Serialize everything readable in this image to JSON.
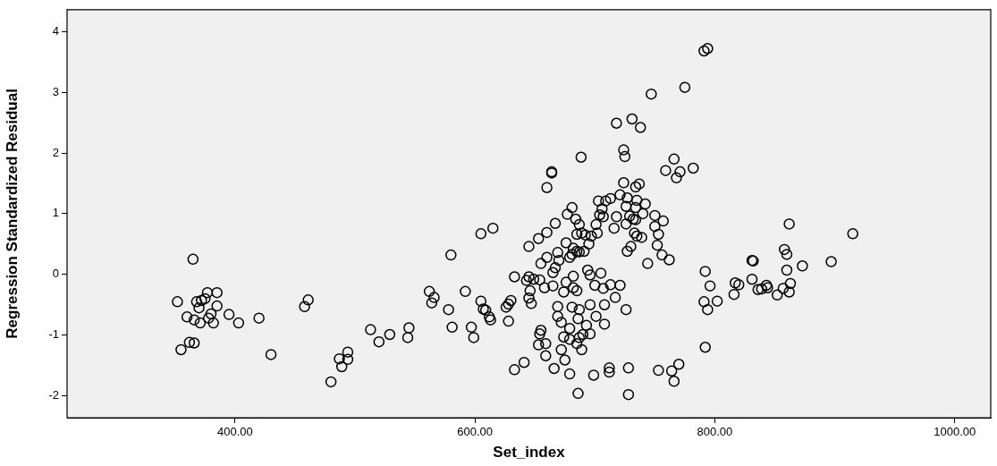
{
  "chart_data": {
    "type": "scatter",
    "xlabel": "Set_index",
    "ylabel": "Regression Standardized Residual",
    "xlim": [
      260,
      1030
    ],
    "ylim": [
      -2.36,
      4.36
    ],
    "xticks": [
      {
        "value": 400,
        "label": "400.00"
      },
      {
        "value": 600,
        "label": "600.00"
      },
      {
        "value": 800,
        "label": "800.00"
      },
      {
        "value": 1000,
        "label": "1000.00"
      }
    ],
    "yticks": [
      -2,
      -1,
      0,
      1,
      2,
      3,
      4
    ],
    "grid": false,
    "legend": false,
    "marker": "circle",
    "series": [
      {
        "color": "#000000",
        "x": [
          352,
          355,
          360,
          362,
          365,
          366,
          366,
          368,
          370,
          371,
          372,
          375,
          377,
          378,
          380,
          382,
          385,
          385,
          395,
          403,
          420,
          430,
          461,
          458,
          480,
          487,
          494,
          494,
          489,
          513,
          529,
          520,
          545,
          544,
          562,
          566,
          564,
          578,
          581,
          592,
          580,
          605,
          615,
          597,
          599,
          605,
          607,
          609,
          612,
          613,
          628,
          626,
          628,
          630,
          633,
          633,
          641,
          645,
          645,
          646,
          645,
          647,
          649,
          643,
          688.5,
          724,
          725,
          766,
          759,
          771,
          768,
          782,
          664,
          664,
          660,
          724,
          734,
          737,
          681,
          677,
          684,
          687,
          667,
          660,
          653,
          676,
          685,
          689,
          692,
          697,
          702,
          695,
          682,
          685,
          681,
          687,
          691,
          679,
          669,
          660,
          670,
          655,
          667,
          665,
          701,
          703,
          706,
          704,
          707,
          709,
          713,
          721,
          727,
          735,
          742,
          726,
          734,
          718,
          729,
          732,
          726,
          734,
          740,
          750,
          757,
          750,
          753,
          716,
          733,
          735,
          739,
          730,
          727,
          752,
          756,
          762,
          744,
          694,
          696,
          705,
          700,
          707,
          713,
          721,
          717,
          726,
          682,
          676,
          674,
          682,
          685,
          665,
          658,
          654,
          669,
          681,
          687,
          696,
          701,
          708,
          708,
          669,
          672,
          686,
          679,
          693,
          690,
          687,
          696,
          674,
          679,
          685,
          689,
          672,
          675,
          655,
          654,
          653,
          659,
          659,
          666,
          679,
          686,
          699,
          712,
          712,
          728,
          728,
          753,
          764,
          770,
          766,
          792,
          792,
          796,
          791,
          794,
          802,
          794,
          791,
          775,
          747,
          718,
          731,
          738,
          862,
          915,
          858,
          860,
          860,
          873,
          897,
          831,
          832,
          831,
          816,
          817,
          820,
          836,
          839,
          843,
          844,
          852,
          857,
          863,
          862
        ],
        "values": [
          -0.45,
          -1.24,
          -0.7,
          -1.12,
          0.25,
          -1.13,
          -0.75,
          -0.45,
          -0.55,
          -0.8,
          -0.43,
          -0.4,
          -0.3,
          -0.72,
          -0.65,
          -0.8,
          -0.3,
          -0.52,
          -0.66,
          -0.8,
          -0.72,
          -1.32,
          -0.42,
          -0.53,
          -1.77,
          -1.39,
          -1.28,
          -1.4,
          -1.52,
          -0.91,
          -0.99,
          -1.11,
          -0.88,
          -1.04,
          -0.28,
          -0.38,
          -0.47,
          -0.58,
          -0.87,
          -0.28,
          0.32,
          0.67,
          0.76,
          -0.87,
          -1.04,
          -0.44,
          -0.57,
          -0.59,
          -0.7,
          -0.75,
          -0.77,
          -0.54,
          -0.49,
          -0.43,
          -0.04,
          -1.57,
          -1.45,
          0.46,
          -0.04,
          -0.27,
          -0.39,
          -0.48,
          -0.08,
          -0.1,
          1.93,
          2.05,
          1.94,
          1.9,
          1.71,
          1.69,
          1.59,
          1.75,
          1.69,
          1.67,
          1.43,
          1.51,
          1.44,
          1.49,
          1.1,
          0.99,
          0.91,
          0.82,
          0.84,
          0.69,
          0.59,
          0.52,
          0.66,
          0.68,
          0.65,
          0.63,
          0.68,
          0.5,
          0.43,
          0.38,
          0.33,
          0.37,
          0.38,
          0.28,
          0.36,
          0.28,
          0.23,
          0.18,
          0.11,
          0.03,
          0.82,
          1.21,
          1.08,
          0.98,
          0.95,
          1.21,
          1.25,
          1.31,
          1.26,
          1.22,
          1.16,
          1.12,
          1.1,
          0.95,
          0.96,
          0.91,
          0.83,
          0.9,
          1.0,
          0.97,
          0.88,
          0.79,
          0.66,
          0.76,
          0.68,
          0.63,
          0.61,
          0.46,
          0.38,
          0.48,
          0.32,
          0.24,
          0.18,
          0.07,
          -0.01,
          0.02,
          -0.18,
          -0.23,
          -0.17,
          -0.18,
          -0.38,
          -0.58,
          -0.03,
          -0.13,
          -0.29,
          -0.22,
          -0.27,
          -0.19,
          -0.22,
          -0.09,
          -0.53,
          -0.54,
          -0.58,
          -0.5,
          -0.69,
          -0.82,
          -0.5,
          -0.69,
          -0.79,
          -0.73,
          -0.89,
          -0.84,
          -0.99,
          -1.04,
          -0.98,
          -1.03,
          -1.07,
          -1.14,
          -1.24,
          -1.24,
          -1.41,
          -0.92,
          -0.98,
          -1.16,
          -1.14,
          -1.34,
          -1.55,
          -1.64,
          -1.96,
          -1.66,
          -1.54,
          -1.61,
          -1.54,
          -1.98,
          -1.58,
          -1.59,
          -1.48,
          -1.76,
          -1.2,
          0.05,
          -0.19,
          -0.45,
          -0.58,
          -0.44,
          3.72,
          3.68,
          3.08,
          2.97,
          2.49,
          2.56,
          2.42,
          0.83,
          0.67,
          0.41,
          0.33,
          0.07,
          0.14,
          0.21,
          0.23,
          0.22,
          -0.08,
          -0.33,
          -0.14,
          -0.17,
          -0.25,
          -0.24,
          -0.18,
          -0.22,
          -0.34,
          -0.23,
          -0.15,
          -0.29
        ]
      }
    ]
  }
}
